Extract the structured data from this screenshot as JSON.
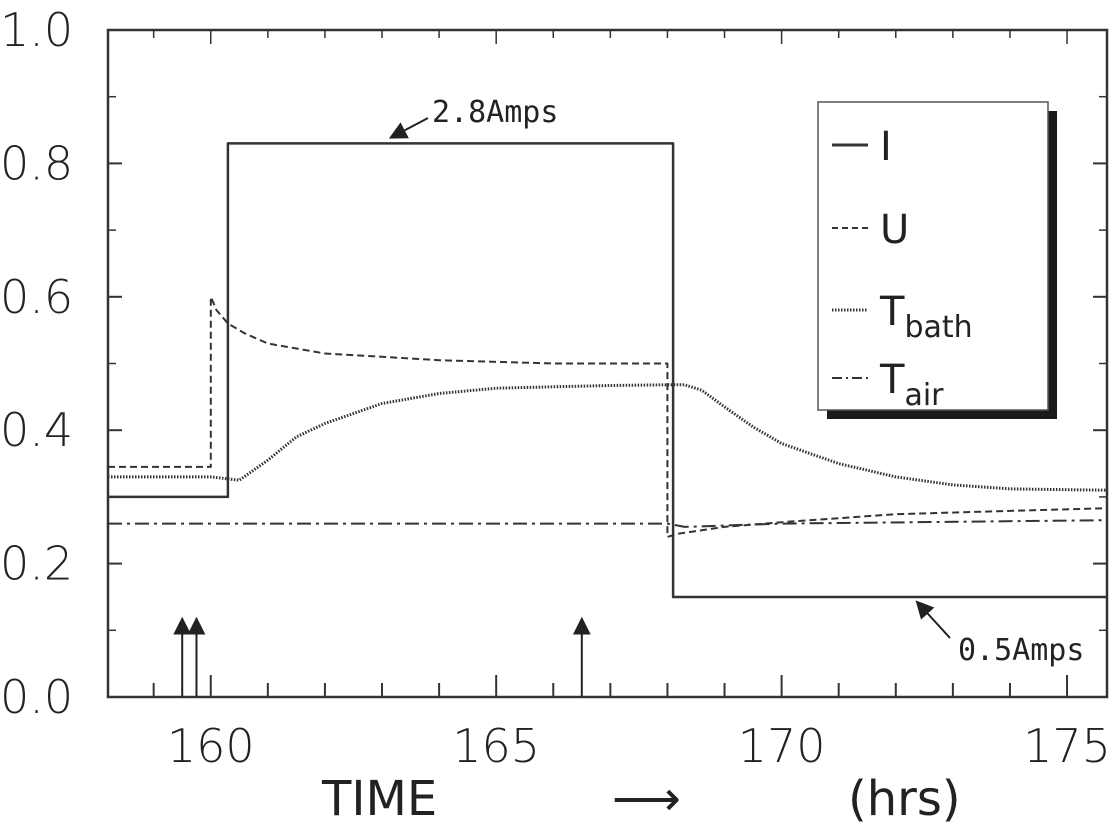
{
  "chart_data": {
    "type": "line",
    "title": "",
    "xlabel": "TIME",
    "xlabel_arrow": "⟶",
    "xlabel_unit": "(hrs)",
    "ylabel": "",
    "xlim": [
      158.2,
      175.7
    ],
    "ylim": [
      0.0,
      1.0
    ],
    "x_ticks": [
      160,
      165,
      170,
      175
    ],
    "y_ticks": [
      0.0,
      0.2,
      0.4,
      0.6,
      0.8,
      1.0
    ],
    "y_tick_labels": [
      "0.0",
      "0.2",
      "0.4",
      "0.6",
      "0.8",
      "1.0"
    ],
    "grid": false,
    "legend_position": "top-right",
    "legend": [
      {
        "symbol": "solid",
        "label": "I",
        "sub": ""
      },
      {
        "symbol": "dashed",
        "label": "U",
        "sub": ""
      },
      {
        "symbol": "dotted",
        "label": "T",
        "sub": "bath"
      },
      {
        "symbol": "dashdot",
        "label": "T",
        "sub": "air"
      }
    ],
    "series": [
      {
        "name": "I",
        "style": "solid",
        "x": [
          158.2,
          160.3,
          160.3,
          168.1,
          168.1,
          175.7
        ],
        "y": [
          0.3,
          0.3,
          0.83,
          0.83,
          0.15,
          0.15
        ]
      },
      {
        "name": "U",
        "style": "dashed",
        "x": [
          158.2,
          160.0,
          160.0,
          160.1,
          160.3,
          160.6,
          161.0,
          162.0,
          163.0,
          164.0,
          166.0,
          168.0,
          168.0,
          168.2,
          169.0,
          170.0,
          171.0,
          172.0,
          174.0,
          175.7
        ],
        "y": [
          0.345,
          0.345,
          0.6,
          0.58,
          0.56,
          0.545,
          0.53,
          0.515,
          0.51,
          0.505,
          0.5,
          0.5,
          0.24,
          0.245,
          0.255,
          0.262,
          0.268,
          0.274,
          0.279,
          0.283
        ]
      },
      {
        "name": "Tbath",
        "style": "dotted",
        "x": [
          158.2,
          160.0,
          160.5,
          161.0,
          161.5,
          162.0,
          163.0,
          164.0,
          165.0,
          166.0,
          167.0,
          168.0,
          168.3,
          168.6,
          169.0,
          169.5,
          170.0,
          171.0,
          172.0,
          173.0,
          174.0,
          175.7
        ],
        "y": [
          0.33,
          0.33,
          0.325,
          0.355,
          0.39,
          0.41,
          0.44,
          0.455,
          0.463,
          0.465,
          0.467,
          0.468,
          0.468,
          0.46,
          0.435,
          0.405,
          0.38,
          0.35,
          0.33,
          0.318,
          0.312,
          0.31
        ]
      },
      {
        "name": "Tair",
        "style": "dashdot",
        "x": [
          158.2,
          168.0,
          168.3,
          170.0,
          175.7
        ],
        "y": [
          0.26,
          0.26,
          0.255,
          0.26,
          0.265
        ]
      }
    ],
    "annotations": [
      {
        "text": "2.8Amps",
        "x": 163.0,
        "y": 0.875
      },
      {
        "text": "0.5Amps",
        "x": 172.0,
        "y": 0.075
      }
    ],
    "event_markers": [
      {
        "x": 159.5,
        "y_from": 0.0,
        "y_to": 0.115
      },
      {
        "x": 159.75,
        "y_from": 0.0,
        "y_to": 0.115
      },
      {
        "x": 166.5,
        "y_from": 0.0,
        "y_to": 0.115
      }
    ]
  }
}
